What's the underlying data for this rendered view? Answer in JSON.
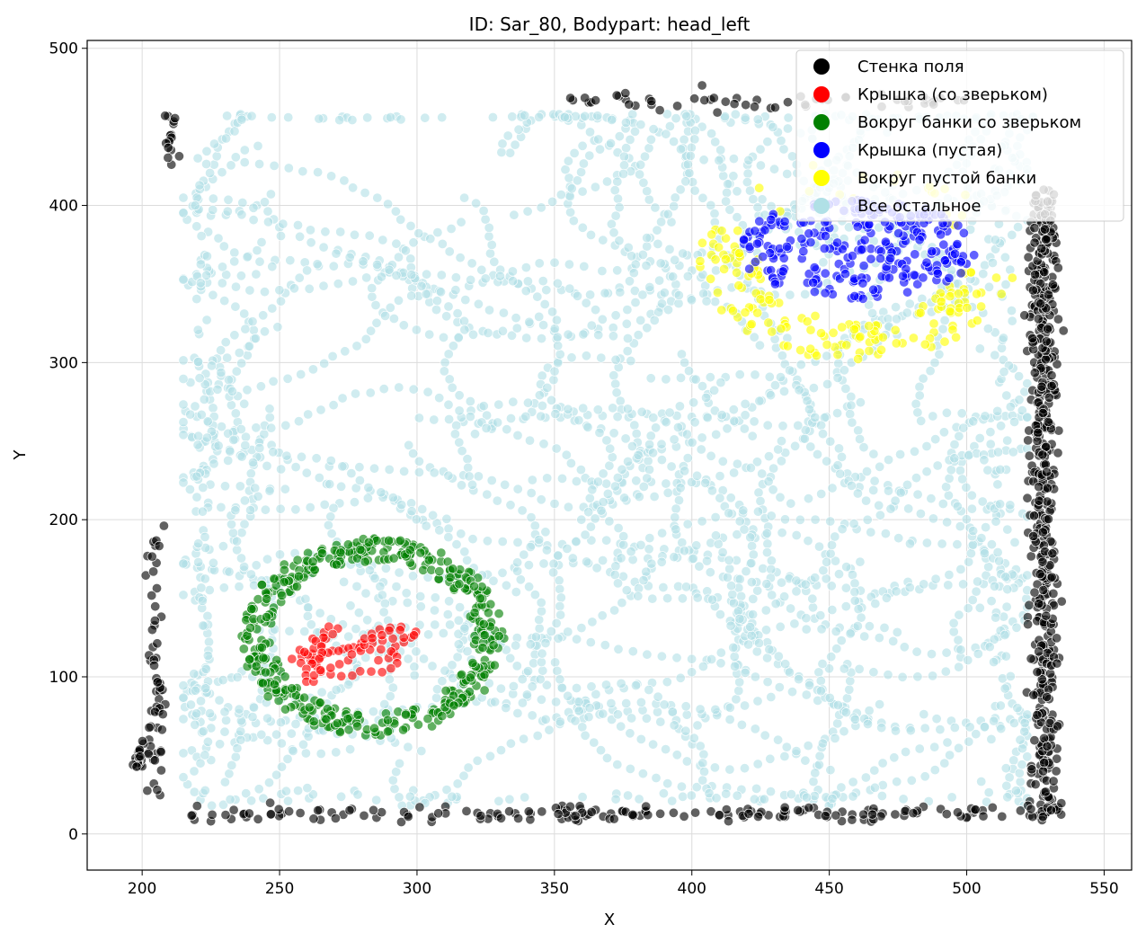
{
  "chart_data": {
    "type": "scatter",
    "title": "ID: Sar_80, Bodypart: head_left",
    "xlabel": "X",
    "ylabel": "Y",
    "xlim": [
      180,
      560
    ],
    "ylim": [
      -23,
      505
    ],
    "xticks": [
      200,
      250,
      300,
      350,
      400,
      450,
      500,
      550
    ],
    "yticks": [
      0,
      100,
      200,
      300,
      400,
      500
    ],
    "grid": true,
    "legend_position": "top-right",
    "series": [
      {
        "name": "Стенка поля",
        "color": "#000000",
        "shape": "wall"
      },
      {
        "name": "Крышка (со зверьком)",
        "color": "#ff0000",
        "shape": "squiggle",
        "center": [
          282,
          110
        ],
        "radius": [
          28,
          28
        ]
      },
      {
        "name": "Вокруг банки со зверьком",
        "color": "#008000",
        "shape": "ring",
        "center": [
          284,
          125
        ],
        "radius": [
          47,
          62
        ]
      },
      {
        "name": "Крышка (пустая)",
        "color": "#0000ff",
        "shape": "disk",
        "center": [
          460,
          372
        ],
        "radius": [
          43,
          32
        ]
      },
      {
        "name": "Вокруг пустой банки",
        "color": "#ffff00",
        "shape": "halo",
        "center": [
          460,
          365
        ],
        "radius": [
          55,
          60
        ]
      },
      {
        "name": "Все остальное",
        "color": "#b0e0e6",
        "shape": "rest"
      }
    ]
  }
}
